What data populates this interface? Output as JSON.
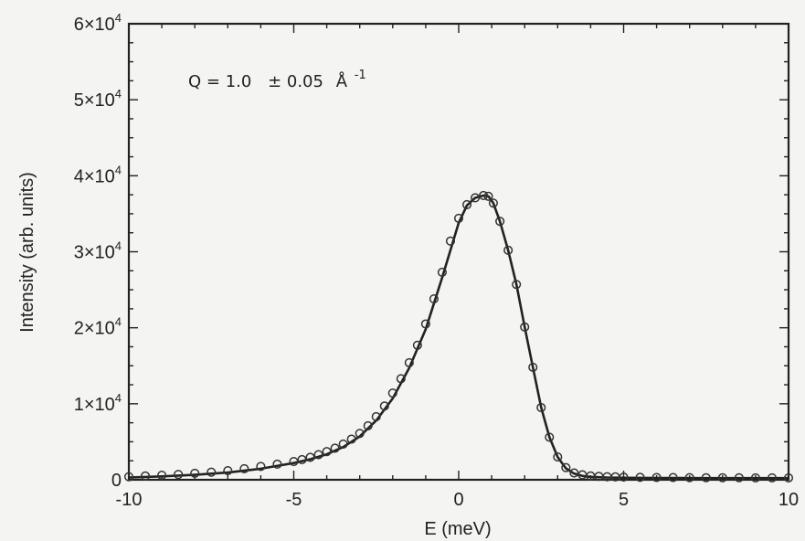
{
  "chart_data": {
    "type": "scatter",
    "title": "",
    "xlabel": "E (meV)",
    "ylabel": "Intensity (arb. units)",
    "xlim": [
      -10,
      10
    ],
    "ylim": [
      0,
      60000
    ],
    "grid": false,
    "legend": "none",
    "annotation": {
      "q_label": "Q = 1.0",
      "pm_label": "± 0.05",
      "unit_label": "Å",
      "exponent_label": "-1"
    },
    "x_ticks": [
      {
        "value": -10,
        "label": "-10"
      },
      {
        "value": -5,
        "label": "-5"
      },
      {
        "value": 0,
        "label": "0"
      },
      {
        "value": 5,
        "label": "5"
      },
      {
        "value": 10,
        "label": "10"
      }
    ],
    "y_ticks": [
      {
        "value": 0,
        "label": "0",
        "mantissa": "",
        "exponent": ""
      },
      {
        "value": 10000,
        "label": "",
        "mantissa": "1×10",
        "exponent": "4"
      },
      {
        "value": 20000,
        "label": "",
        "mantissa": "2×10",
        "exponent": "4"
      },
      {
        "value": 30000,
        "label": "",
        "mantissa": "3×10",
        "exponent": "4"
      },
      {
        "value": 40000,
        "label": "",
        "mantissa": "4×10",
        "exponent": "4"
      },
      {
        "value": 50000,
        "label": "",
        "mantissa": "5×10",
        "exponent": "4"
      },
      {
        "value": 60000,
        "label": "",
        "mantissa": "6×10",
        "exponent": "4"
      }
    ],
    "series": [
      {
        "kind": "markers",
        "marker": "open-circle",
        "color": "#333333",
        "x": [
          -10,
          -9.5,
          -9,
          -8.5,
          -8,
          -7.5,
          -7,
          -6.5,
          -6,
          -5.5,
          -5,
          -4.75,
          -4.5,
          -4.25,
          -4,
          -3.75,
          -3.5,
          -3.25,
          -3,
          -2.75,
          -2.5,
          -2.25,
          -2,
          -1.75,
          -1.5,
          -1.25,
          -1,
          -0.75,
          -0.5,
          -0.25,
          0,
          0.25,
          0.5,
          0.75,
          0.9,
          1.05,
          1.25,
          1.5,
          1.75,
          2.0,
          2.25,
          2.5,
          2.75,
          3.0,
          3.25,
          3.5,
          3.75,
          4.0,
          4.25,
          4.5,
          4.75,
          5.0,
          5.5,
          6,
          6.5,
          7,
          7.5,
          8,
          8.5,
          9,
          9.5,
          10
        ],
        "y": [
          400,
          500,
          600,
          700,
          850,
          1000,
          1200,
          1450,
          1750,
          2050,
          2400,
          2650,
          2950,
          3300,
          3700,
          4150,
          4700,
          5350,
          6100,
          7100,
          8300,
          9700,
          11400,
          13300,
          15400,
          17700,
          20500,
          23800,
          27300,
          31400,
          34400,
          36200,
          37100,
          37400,
          37300,
          36400,
          34000,
          30200,
          25700,
          20100,
          14800,
          9500,
          5600,
          3000,
          1600,
          900,
          650,
          500,
          450,
          400,
          380,
          350,
          320,
          300,
          290,
          280,
          270,
          260,
          260,
          250,
          250,
          250
        ]
      },
      {
        "kind": "line",
        "color": "#222222",
        "x": [
          -10,
          -9,
          -8,
          -7,
          -6,
          -5,
          -4.5,
          -4,
          -3.5,
          -3,
          -2.5,
          -2,
          -1.5,
          -1,
          -0.5,
          0,
          0.25,
          0.5,
          0.75,
          0.9,
          1.05,
          1.25,
          1.5,
          1.75,
          2.0,
          2.25,
          2.5,
          2.75,
          3.0,
          3.25,
          3.5,
          3.75,
          4.0,
          4.5,
          5,
          6,
          7,
          8,
          9,
          10
        ],
        "y": [
          300,
          450,
          650,
          950,
          1450,
          2200,
          2700,
          3350,
          4300,
          5700,
          7800,
          10700,
          14700,
          19800,
          26600,
          33800,
          36100,
          37100,
          37400,
          37300,
          36400,
          34000,
          30200,
          25700,
          20100,
          14800,
          9500,
          5600,
          3000,
          1500,
          800,
          500,
          380,
          300,
          260,
          240,
          230,
          220,
          220,
          220
        ]
      }
    ]
  }
}
